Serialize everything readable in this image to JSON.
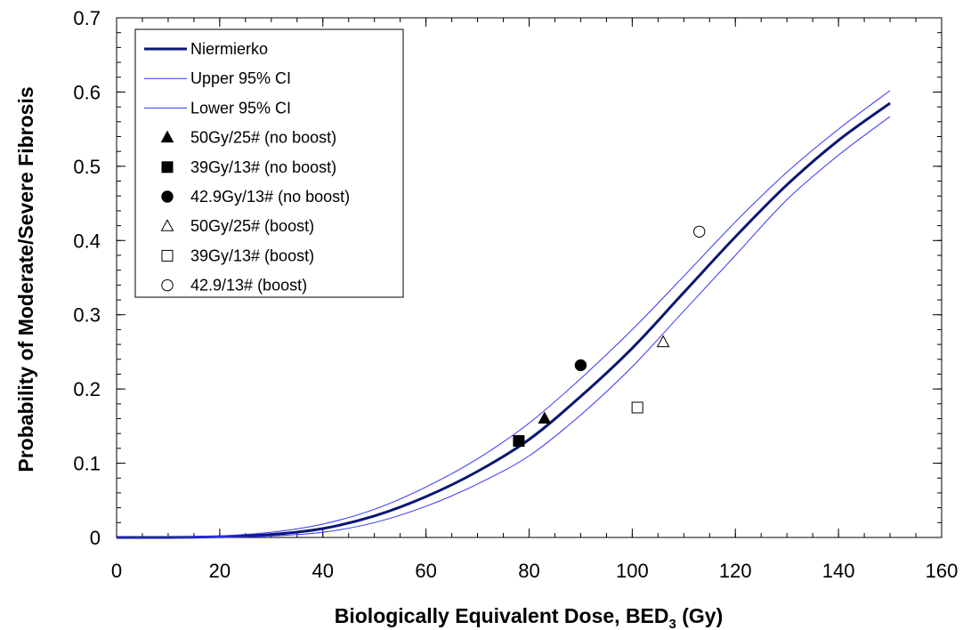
{
  "chart_data": {
    "type": "line",
    "title": "",
    "xlabel": {
      "main": "Biologically Equivalent Dose, BED",
      "subscript": "3",
      "suffix": " (Gy)"
    },
    "ylabel": "Probability of Moderate/Severe Fibrosis",
    "xlim": [
      0,
      160
    ],
    "ylim": [
      0,
      0.7
    ],
    "xticks": [
      "0",
      "20",
      "40",
      "60",
      "80",
      "100",
      "120",
      "140",
      "160"
    ],
    "yticks": [
      "0",
      "0.1",
      "0.2",
      "0.3",
      "0.4",
      "0.5",
      "0.6",
      "0.7"
    ],
    "grid": false,
    "legend_position": "top-left",
    "series": [
      {
        "name": "Niermierko",
        "kind": "line",
        "color": "#0a1673",
        "x": [
          0,
          10,
          20,
          30,
          40,
          50,
          60,
          70,
          80,
          90,
          100,
          110,
          120,
          130,
          140,
          150
        ],
        "y": [
          0,
          0,
          0.001,
          0.004,
          0.012,
          0.029,
          0.055,
          0.089,
          0.132,
          0.19,
          0.255,
          0.33,
          0.405,
          0.475,
          0.535,
          0.585
        ]
      },
      {
        "name": "Upper 95% CI",
        "kind": "line",
        "color": "#3333ff",
        "x": [
          0,
          10,
          20,
          30,
          40,
          50,
          60,
          70,
          80,
          90,
          100,
          110,
          120,
          130,
          140,
          150
        ],
        "y": [
          0,
          0,
          0.002,
          0.007,
          0.018,
          0.038,
          0.068,
          0.106,
          0.154,
          0.214,
          0.28,
          0.352,
          0.425,
          0.492,
          0.55,
          0.602
        ]
      },
      {
        "name": "Lower 95% CI",
        "kind": "line",
        "color": "#3333ff",
        "x": [
          0,
          10,
          20,
          30,
          40,
          50,
          60,
          70,
          80,
          90,
          100,
          110,
          120,
          130,
          140,
          150
        ],
        "y": [
          0,
          0,
          0.0005,
          0.002,
          0.007,
          0.02,
          0.042,
          0.072,
          0.11,
          0.165,
          0.23,
          0.305,
          0.38,
          0.455,
          0.515,
          0.567
        ]
      },
      {
        "name": "50Gy/25# (no boost)",
        "kind": "marker",
        "marker": "triangle",
        "filled": true,
        "x": [
          83
        ],
        "y": [
          0.16
        ]
      },
      {
        "name": "39Gy/13# (no boost)",
        "kind": "marker",
        "marker": "square",
        "filled": true,
        "x": [
          78
        ],
        "y": [
          0.13
        ]
      },
      {
        "name": "42.9Gy/13# (no boost)",
        "kind": "marker",
        "marker": "circle",
        "filled": true,
        "x": [
          90
        ],
        "y": [
          0.232
        ]
      },
      {
        "name": "50Gy/25# (boost)",
        "kind": "marker",
        "marker": "triangle",
        "filled": false,
        "x": [
          106
        ],
        "y": [
          0.263
        ]
      },
      {
        "name": "39Gy/13# (boost)",
        "kind": "marker",
        "marker": "square",
        "filled": false,
        "x": [
          101
        ],
        "y": [
          0.175
        ]
      },
      {
        "name": "42.9/13# (boost)",
        "kind": "marker",
        "marker": "circle",
        "filled": false,
        "x": [
          113
        ],
        "y": [
          0.412
        ]
      }
    ]
  }
}
